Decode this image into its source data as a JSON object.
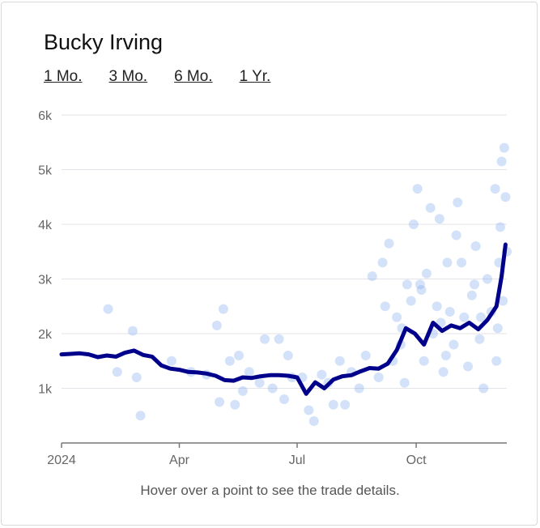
{
  "title": "Bucky Irving",
  "ranges": [
    "1 Mo.",
    "3 Mo.",
    "6 Mo.",
    "1 Yr."
  ],
  "hint": "Hover over a point to see the trade details.",
  "colors": {
    "line": "#00008b",
    "dots": "#6f9fea",
    "grid": "#e3e3ea",
    "axis": "#777777"
  },
  "chart_data": {
    "type": "scatter",
    "ylim": [
      0,
      6000
    ],
    "yticks": [
      1000,
      2000,
      3000,
      4000,
      5000,
      6000
    ],
    "ytick_labels": [
      "1k",
      "2k",
      "3k",
      "4k",
      "5k",
      "6k"
    ],
    "xlim": [
      "2024-01-01",
      "2024-12-10"
    ],
    "xticks": [
      "2024-01-01",
      "2024-04-01",
      "2024-07-01",
      "2024-10-01"
    ],
    "xtick_labels": [
      "2024",
      "Apr",
      "Jul",
      "Oct"
    ],
    "grid": true,
    "series": [
      {
        "type": "line",
        "points": [
          [
            "2024-01-01",
            1620
          ],
          [
            "2024-01-08",
            1630
          ],
          [
            "2024-01-15",
            1640
          ],
          [
            "2024-01-22",
            1620
          ],
          [
            "2024-01-29",
            1570
          ],
          [
            "2024-02-05",
            1600
          ],
          [
            "2024-02-12",
            1580
          ],
          [
            "2024-02-19",
            1650
          ],
          [
            "2024-02-26",
            1690
          ],
          [
            "2024-03-04",
            1610
          ],
          [
            "2024-03-11",
            1580
          ],
          [
            "2024-03-18",
            1420
          ],
          [
            "2024-03-25",
            1360
          ],
          [
            "2024-04-01",
            1340
          ],
          [
            "2024-04-08",
            1300
          ],
          [
            "2024-04-15",
            1290
          ],
          [
            "2024-04-22",
            1270
          ],
          [
            "2024-04-29",
            1230
          ],
          [
            "2024-05-06",
            1150
          ],
          [
            "2024-05-13",
            1140
          ],
          [
            "2024-05-20",
            1200
          ],
          [
            "2024-05-27",
            1190
          ],
          [
            "2024-06-03",
            1220
          ],
          [
            "2024-06-10",
            1240
          ],
          [
            "2024-06-17",
            1240
          ],
          [
            "2024-06-24",
            1230
          ],
          [
            "2024-07-01",
            1200
          ],
          [
            "2024-07-08",
            900
          ],
          [
            "2024-07-15",
            1110
          ],
          [
            "2024-07-22",
            1000
          ],
          [
            "2024-07-29",
            1160
          ],
          [
            "2024-08-05",
            1220
          ],
          [
            "2024-08-12",
            1240
          ],
          [
            "2024-08-19",
            1310
          ],
          [
            "2024-08-26",
            1370
          ],
          [
            "2024-09-02",
            1360
          ],
          [
            "2024-09-09",
            1450
          ],
          [
            "2024-09-16",
            1700
          ],
          [
            "2024-09-23",
            2100
          ],
          [
            "2024-09-30",
            2000
          ],
          [
            "2024-10-07",
            1800
          ],
          [
            "2024-10-14",
            2200
          ],
          [
            "2024-10-21",
            2050
          ],
          [
            "2024-10-28",
            2150
          ],
          [
            "2024-11-04",
            2100
          ],
          [
            "2024-11-11",
            2200
          ],
          [
            "2024-11-18",
            2080
          ],
          [
            "2024-11-25",
            2250
          ],
          [
            "2024-12-02",
            2500
          ],
          [
            "2024-12-06",
            3050
          ],
          [
            "2024-12-09",
            3630
          ]
        ]
      },
      {
        "type": "scatter",
        "points": [
          [
            "2024-02-06",
            2450
          ],
          [
            "2024-02-13",
            1300
          ],
          [
            "2024-02-25",
            2050
          ],
          [
            "2024-02-28",
            1200
          ],
          [
            "2024-03-02",
            500
          ],
          [
            "2024-03-26",
            1500
          ],
          [
            "2024-04-10",
            1300
          ],
          [
            "2024-04-22",
            1250
          ],
          [
            "2024-04-30",
            2150
          ],
          [
            "2024-05-05",
            2450
          ],
          [
            "2024-05-02",
            750
          ],
          [
            "2024-05-10",
            1500
          ],
          [
            "2024-05-14",
            700
          ],
          [
            "2024-05-17",
            1600
          ],
          [
            "2024-05-20",
            950
          ],
          [
            "2024-05-25",
            1300
          ],
          [
            "2024-06-02",
            1100
          ],
          [
            "2024-06-06",
            1900
          ],
          [
            "2024-06-12",
            1000
          ],
          [
            "2024-06-17",
            1900
          ],
          [
            "2024-06-21",
            800
          ],
          [
            "2024-06-24",
            1600
          ],
          [
            "2024-06-27",
            1200
          ],
          [
            "2024-07-05",
            1200
          ],
          [
            "2024-07-10",
            600
          ],
          [
            "2024-07-14",
            400
          ],
          [
            "2024-07-20",
            1250
          ],
          [
            "2024-07-25",
            1100
          ],
          [
            "2024-07-29",
            700
          ],
          [
            "2024-08-03",
            1500
          ],
          [
            "2024-08-07",
            700
          ],
          [
            "2024-08-12",
            1300
          ],
          [
            "2024-08-18",
            1000
          ],
          [
            "2024-08-23",
            1600
          ],
          [
            "2024-08-28",
            3050
          ],
          [
            "2024-09-02",
            1200
          ],
          [
            "2024-09-05",
            3300
          ],
          [
            "2024-09-07",
            2500
          ],
          [
            "2024-09-10",
            3650
          ],
          [
            "2024-09-13",
            1500
          ],
          [
            "2024-09-16",
            2300
          ],
          [
            "2024-09-19",
            1800
          ],
          [
            "2024-09-22",
            1100
          ],
          [
            "2024-09-24",
            2900
          ],
          [
            "2024-09-27",
            2600
          ],
          [
            "2024-09-29",
            4000
          ],
          [
            "2024-10-02",
            4650
          ],
          [
            "2024-10-04",
            2900
          ],
          [
            "2024-10-07",
            1500
          ],
          [
            "2024-10-09",
            3100
          ],
          [
            "2024-10-12",
            4300
          ],
          [
            "2024-10-14",
            2000
          ],
          [
            "2024-10-17",
            2500
          ],
          [
            "2024-10-19",
            4100
          ],
          [
            "2024-10-22",
            1300
          ],
          [
            "2024-10-25",
            3300
          ],
          [
            "2024-10-27",
            2400
          ],
          [
            "2024-10-30",
            1800
          ],
          [
            "2024-11-02",
            4400
          ],
          [
            "2024-11-05",
            3300
          ],
          [
            "2024-11-07",
            2300
          ],
          [
            "2024-11-10",
            1400
          ],
          [
            "2024-11-13",
            2700
          ],
          [
            "2024-11-16",
            3600
          ],
          [
            "2024-11-19",
            1900
          ],
          [
            "2024-11-22",
            1000
          ],
          [
            "2024-11-25",
            3000
          ],
          [
            "2024-11-28",
            2400
          ],
          [
            "2024-12-01",
            4650
          ],
          [
            "2024-12-03",
            2100
          ],
          [
            "2024-12-05",
            3950
          ],
          [
            "2024-12-06",
            5150
          ],
          [
            "2024-12-07",
            2600
          ],
          [
            "2024-12-08",
            5400
          ],
          [
            "2024-12-09",
            4500
          ],
          [
            "2024-12-10",
            3500
          ],
          [
            "2024-10-05",
            2800
          ],
          [
            "2024-10-20",
            2200
          ],
          [
            "2024-11-01",
            3800
          ],
          [
            "2024-11-15",
            2900
          ],
          [
            "2024-12-04",
            3300
          ],
          [
            "2024-09-20",
            2100
          ],
          [
            "2024-10-24",
            1600
          ],
          [
            "2024-11-20",
            2300
          ],
          [
            "2024-12-02",
            1500
          ]
        ]
      }
    ]
  }
}
